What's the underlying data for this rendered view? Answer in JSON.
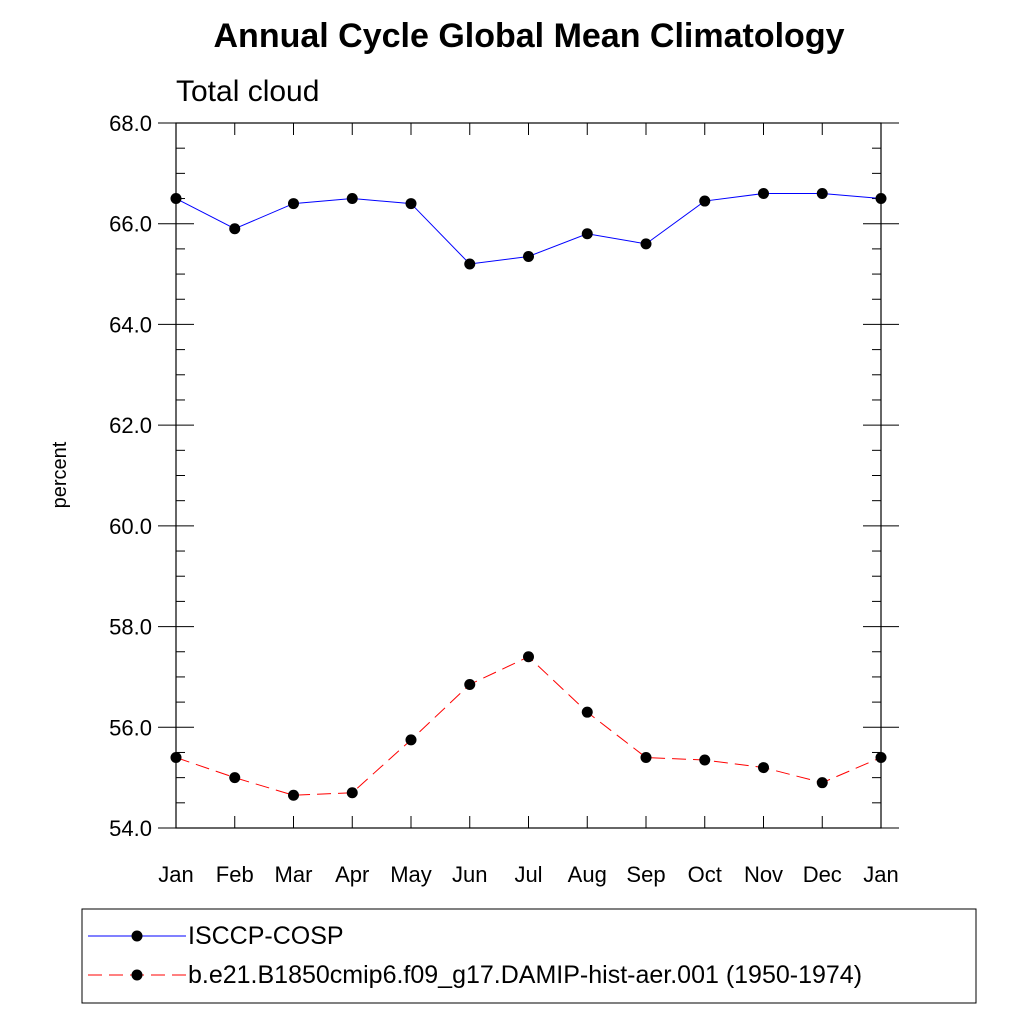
{
  "chart_data": {
    "type": "line",
    "title": "Annual Cycle Global Mean Climatology",
    "subtitle": "Total cloud",
    "xlabel": "",
    "ylabel": "percent",
    "categories": [
      "Jan",
      "Feb",
      "Mar",
      "Apr",
      "May",
      "Jun",
      "Jul",
      "Aug",
      "Sep",
      "Oct",
      "Nov",
      "Dec",
      "Jan"
    ],
    "ylim": [
      54.0,
      68.0
    ],
    "yticks": [
      "54.0",
      "56.0",
      "58.0",
      "60.0",
      "62.0",
      "64.0",
      "66.0",
      "68.0"
    ],
    "legend_position": "bottom",
    "grid": false,
    "series": [
      {
        "name": "ISCCP-COSP",
        "color": "#0000ff",
        "line_style": "solid",
        "marker": "filled-circle",
        "values": [
          66.5,
          65.9,
          66.4,
          66.5,
          66.4,
          65.2,
          65.35,
          65.8,
          65.6,
          66.45,
          66.6,
          66.6,
          66.5
        ]
      },
      {
        "name": "b.e21.B1850cmip6.f09_g17.DAMIP-hist-aer.001 (1950-1974)",
        "color": "#ff0000",
        "line_style": "dashed",
        "marker": "filled-circle",
        "values": [
          55.4,
          55.0,
          54.65,
          54.7,
          55.75,
          56.85,
          57.4,
          56.3,
          55.4,
          55.35,
          55.2,
          54.9,
          55.4
        ]
      }
    ]
  }
}
